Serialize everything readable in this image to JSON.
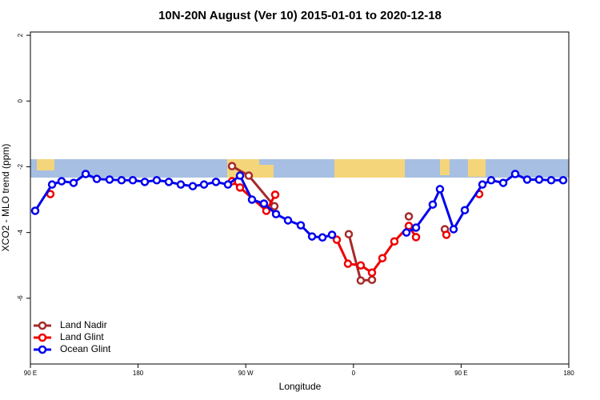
{
  "chart_data": {
    "type": "line",
    "title": "10N-20N August (Ver 10)   2015-01-01 to 2020-12-18",
    "x_label": "Longitude",
    "y_label": "XCO2 - MLO trend (ppm)",
    "xlim": [
      90,
      540
    ],
    "ylim": [
      -8,
      2.1
    ],
    "xticks": [
      {
        "value": 90,
        "label": "90 E"
      },
      180,
      {
        "value": 270,
        "label": "90 W"
      },
      {
        "value": 360,
        "label": "0"
      },
      {
        "value": 450,
        "label": "90 E"
      },
      {
        "value": 540,
        "label": "180"
      }
    ],
    "yticks": [
      -6,
      -4,
      -2,
      0,
      2
    ],
    "legend": "bottom-left",
    "series": [
      {
        "name": "Land Nadir",
        "color": "#a52a2a",
        "x": [
          258.5,
          272.5,
          293.9,
          null,
          356.1,
          366.1,
          375.5,
          null,
          406.3,
          null,
          436.4
        ],
        "values": [
          -1.98,
          -2.27,
          -3.2,
          null,
          -4.05,
          -5.46,
          -5.44,
          null,
          -3.51,
          null,
          -3.9
        ]
      },
      {
        "name": "Land Glint",
        "color": "#ee0000",
        "x": [
          106.7,
          null,
          258.5,
          265.2,
          287.2,
          294.6,
          null,
          346.1,
          355.4,
          366.1,
          375.5,
          384.2,
          394.2,
          406.3,
          412.3,
          null,
          437.7,
          null,
          465.1
        ],
        "values": [
          -2.83,
          null,
          -2.44,
          -2.63,
          -3.34,
          -2.85,
          null,
          -4.22,
          -4.95,
          -5.0,
          -5.22,
          -4.78,
          -4.27,
          -3.8,
          -4.14,
          null,
          -4.07,
          null,
          -2.83
        ]
      },
      {
        "name": "Ocean Glint",
        "color": "#0000ee",
        "x": [
          94.0,
          108.1,
          116.1,
          126.1,
          136.2,
          145.5,
          156.2,
          166.2,
          175.6,
          185.6,
          195.6,
          205.7,
          215.7,
          225.7,
          235.1,
          245.1,
          255.1,
          265.2,
          275.2,
          285.2,
          295.3,
          305.3,
          316.0,
          325.4,
          334.1,
          342.1,
          null,
          404.3,
          412.3,
          426.3,
          432.3,
          443.7,
          453.1,
          467.8,
          475.1,
          485.2,
          495.2,
          505.2,
          515.2,
          525.3,
          535.3
        ],
        "values": [
          -3.34,
          -2.54,
          -2.44,
          -2.49,
          -2.22,
          -2.37,
          -2.39,
          -2.41,
          -2.41,
          -2.46,
          -2.41,
          -2.46,
          -2.54,
          -2.59,
          -2.54,
          -2.46,
          -2.54,
          -2.27,
          -3.0,
          -3.12,
          -3.44,
          -3.63,
          -3.78,
          -4.12,
          -4.15,
          -4.07,
          null,
          -4.0,
          -3.85,
          -3.15,
          -2.68,
          -3.9,
          -3.32,
          -2.54,
          -2.41,
          -2.49,
          -2.22,
          -2.39,
          -2.39,
          -2.41,
          -2.41
        ]
      }
    ]
  }
}
